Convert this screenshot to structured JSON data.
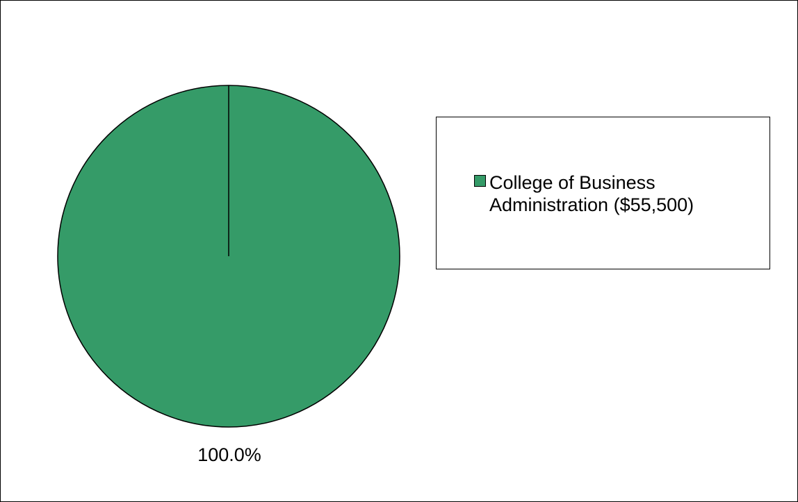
{
  "chart_data": {
    "type": "pie",
    "title": "",
    "slices": [
      {
        "label": "College of Business Administration ($55,500)",
        "value": 55500,
        "percent": 100.0,
        "percent_label": "100.0%",
        "color": "#359b68"
      }
    ],
    "legend": {
      "placement": "right",
      "entries": [
        "College of Business Administration ($55,500)"
      ]
    }
  }
}
